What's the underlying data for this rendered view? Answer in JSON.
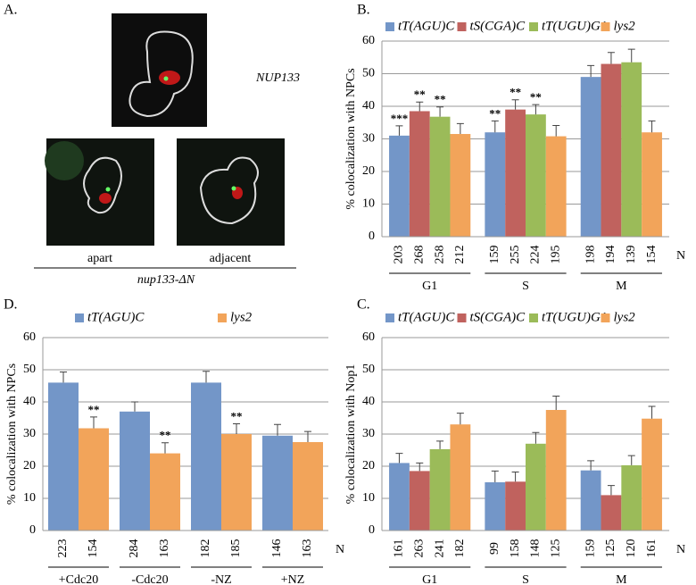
{
  "panel_a": {
    "label": "A.",
    "top_label": "NUP133",
    "image_labels": [
      "apart",
      "adjacent"
    ],
    "caption": "nup133-ΔN"
  },
  "chart_data": [
    {
      "type": "bar",
      "label": "B.",
      "ylabel": "% colocalization with NPCs",
      "n_label": "N",
      "categories": [
        "G1",
        "S",
        "M"
      ],
      "ylim": [
        0,
        60
      ],
      "yticks": [
        0,
        10,
        20,
        30,
        40,
        50,
        60
      ],
      "grid": true,
      "series": [
        {
          "name": "tT(AGU)C",
          "color": "#7396c8",
          "values": [
            31,
            32,
            49
          ],
          "errors": [
            3,
            3.5,
            3.5
          ],
          "significance": [
            "***",
            "**",
            null
          ],
          "n": [
            203,
            159,
            198
          ]
        },
        {
          "name": "tS(CGA)C",
          "color": "#c0625e",
          "values": [
            38.5,
            39,
            53
          ],
          "errors": [
            2.8,
            3,
            3.5
          ],
          "significance": [
            "**",
            "**",
            null
          ],
          "n": [
            268,
            255,
            194
          ]
        },
        {
          "name": "tT(UGU)G1",
          "color": "#9bbb59",
          "values": [
            36.8,
            37.5,
            53.5
          ],
          "errors": [
            3,
            3,
            4
          ],
          "significance": [
            "**",
            "**",
            null
          ],
          "n": [
            258,
            224,
            139
          ]
        },
        {
          "name": "lys2",
          "color": "#f2a45a",
          "values": [
            31.5,
            30.8,
            32
          ],
          "errors": [
            3.2,
            3.3,
            3.5
          ],
          "significance": [
            null,
            null,
            null
          ],
          "n": [
            212,
            195,
            154
          ]
        }
      ]
    },
    {
      "type": "bar",
      "label": "D.",
      "ylabel": "% colocalization with NPCs",
      "n_label": "N",
      "categories": [
        "+Cdc20",
        "-Cdc20",
        "-NZ",
        "+NZ"
      ],
      "ylim": [
        0,
        60
      ],
      "yticks": [
        0,
        10,
        20,
        30,
        40,
        50,
        60
      ],
      "grid": true,
      "series": [
        {
          "name": "tT(AGU)C",
          "color": "#7396c8",
          "values": [
            46,
            37,
            46,
            29.5
          ],
          "errors": [
            3.3,
            3,
            3.5,
            3.5
          ],
          "significance": [
            null,
            null,
            null,
            null
          ],
          "n": [
            223,
            284,
            182,
            146
          ]
        },
        {
          "name": "lys2",
          "color": "#f2a45a",
          "values": [
            31.8,
            24,
            30,
            27.5
          ],
          "errors": [
            3.5,
            3.3,
            3.2,
            3.3
          ],
          "significance": [
            "**",
            "**",
            "**",
            null
          ],
          "n": [
            154,
            163,
            185,
            163
          ]
        }
      ]
    },
    {
      "type": "bar",
      "label": "C.",
      "ylabel": "% colocalization with Nop1",
      "n_label": "N",
      "categories": [
        "G1",
        "S",
        "M"
      ],
      "ylim": [
        0,
        60
      ],
      "yticks": [
        0,
        10,
        20,
        30,
        40,
        50,
        60
      ],
      "grid": true,
      "series": [
        {
          "name": "tT(AGU)C",
          "color": "#7396c8",
          "values": [
            21,
            15,
            18.7
          ],
          "errors": [
            3,
            3.5,
            3
          ],
          "significance": [
            null,
            null,
            null
          ],
          "n": [
            161,
            99,
            159
          ]
        },
        {
          "name": "tS(CGA)C",
          "color": "#c0625e",
          "values": [
            18.5,
            15.2,
            11
          ],
          "errors": [
            2.5,
            3,
            3
          ],
          "significance": [
            null,
            null,
            null
          ],
          "n": [
            263,
            158,
            125
          ]
        },
        {
          "name": "tT(UGU)G1",
          "color": "#9bbb59",
          "values": [
            25.3,
            27,
            20.3
          ],
          "errors": [
            2.5,
            3.5,
            3
          ],
          "significance": [
            null,
            null,
            null
          ],
          "n": [
            241,
            148,
            120
          ]
        },
        {
          "name": "lys2",
          "color": "#f2a45a",
          "values": [
            33,
            37.5,
            34.8
          ],
          "errors": [
            3.5,
            4.3,
            3.8
          ],
          "significance": [
            null,
            null,
            null
          ],
          "n": [
            182,
            125,
            161
          ]
        }
      ]
    }
  ]
}
